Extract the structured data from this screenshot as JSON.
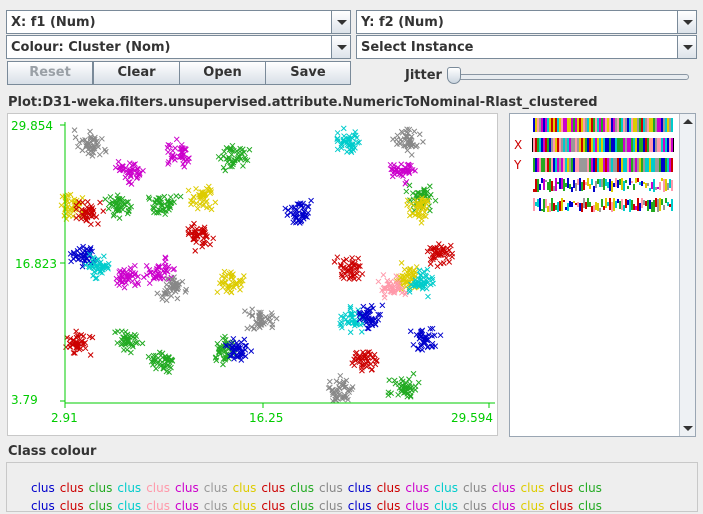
{
  "x_axis_select": {
    "value": "X: f1 (Num)"
  },
  "y_axis_select": {
    "value": "Y: f2 (Num)"
  },
  "colour_select": {
    "value": "Colour: Cluster (Nom)"
  },
  "instance_select": {
    "value": "Select Instance"
  },
  "buttons": {
    "reset": "Reset",
    "clear": "Clear",
    "open": "Open",
    "save": "Save"
  },
  "jitter": {
    "label": "Jitter",
    "value": 0
  },
  "plot": {
    "title": "Plot:D31-weka.filters.unsupervised.attribute.NumericToNominal-Rlast_clustered"
  },
  "side_panel": {
    "x_label": "X",
    "y_label": "Y"
  },
  "class_colour": {
    "label": "Class colour",
    "rows": [
      [
        "clus",
        "clus",
        "clus",
        "clus",
        "clus",
        "clus",
        "clus",
        "clus",
        "clus",
        "clus",
        "clus",
        "clus",
        "clus",
        "clus",
        "clus",
        "clus",
        "clus",
        "clus",
        "clus",
        "clus"
      ],
      [
        "clus",
        "clus",
        "clus",
        "clus",
        "clus",
        "clus",
        "clus",
        "clus",
        "clus",
        "clus",
        "clus",
        "clus",
        "clus",
        "clus",
        "clus",
        "clus",
        "clus",
        "clus",
        "clus",
        "clus"
      ]
    ],
    "colors": [
      [
        "#0000cc",
        "#cc0000",
        "#22aa22",
        "#00cccc",
        "#ff99aa",
        "#cc00cc",
        "#999999",
        "#ddcc00",
        "#cc0000",
        "#22aa22",
        "#888888",
        "#0000cc",
        "#cc0000",
        "#cc00cc",
        "#00cccc",
        "#888888",
        "#cc00cc",
        "#ddcc00",
        "#cc0000",
        "#22aa22"
      ],
      [
        "#0000cc",
        "#cc0000",
        "#22aa22",
        "#00cccc",
        "#ff99aa",
        "#cc00cc",
        "#999999",
        "#ddcc00",
        "#cc0000",
        "#22aa22",
        "#888888",
        "#0000cc",
        "#cc0000",
        "#cc00cc",
        "#00cccc",
        "#888888",
        "#cc00cc",
        "#ddcc00",
        "#cc0000",
        "#22aa22"
      ]
    ]
  },
  "chart_data": {
    "type": "scatter",
    "x_tick_labels": [
      "2.91",
      "16.25",
      "29.594"
    ],
    "y_tick_labels": [
      "29.854",
      "16.823",
      "3.79"
    ],
    "xlim": [
      2.91,
      29.594
    ],
    "ylim": [
      3.79,
      29.854
    ],
    "axis_color": "#00cc00",
    "clusters": [
      {
        "color": "#888888",
        "x": 4.5,
        "y": 28.0
      },
      {
        "color": "#cc00cc",
        "x": 10.0,
        "y": 27.2
      },
      {
        "color": "#cc00cc",
        "x": 7.0,
        "y": 25.5
      },
      {
        "color": "#22aa22",
        "x": 13.6,
        "y": 26.8
      },
      {
        "color": "#00cccc",
        "x": 20.7,
        "y": 28.3
      },
      {
        "color": "#888888",
        "x": 24.5,
        "y": 28.4
      },
      {
        "color": "#cc00cc",
        "x": 24.0,
        "y": 25.6
      },
      {
        "color": "#ddcc00",
        "x": 3.3,
        "y": 22.2
      },
      {
        "color": "#cc0000",
        "x": 4.4,
        "y": 21.5
      },
      {
        "color": "#22aa22",
        "x": 6.3,
        "y": 22.4
      },
      {
        "color": "#22aa22",
        "x": 9.1,
        "y": 22.4
      },
      {
        "color": "#ddcc00",
        "x": 11.6,
        "y": 23.0
      },
      {
        "color": "#0000cc",
        "x": 17.7,
        "y": 21.5
      },
      {
        "color": "#22aa22",
        "x": 25.2,
        "y": 23.0
      },
      {
        "color": "#ddcc00",
        "x": 25.2,
        "y": 22.0
      },
      {
        "color": "#0000cc",
        "x": 4.1,
        "y": 17.5
      },
      {
        "color": "#00cccc",
        "x": 5.0,
        "y": 16.5
      },
      {
        "color": "#cc0000",
        "x": 11.3,
        "y": 19.4
      },
      {
        "color": "#cc00cc",
        "x": 6.8,
        "y": 15.5
      },
      {
        "color": "#cc00cc",
        "x": 8.9,
        "y": 15.9
      },
      {
        "color": "#888888",
        "x": 9.6,
        "y": 14.5
      },
      {
        "color": "#ddcc00",
        "x": 13.3,
        "y": 15.0
      },
      {
        "color": "#cc0000",
        "x": 20.9,
        "y": 16.3
      },
      {
        "color": "#cc0000",
        "x": 26.5,
        "y": 17.7
      },
      {
        "color": "#ddcc00",
        "x": 24.6,
        "y": 15.5
      },
      {
        "color": "#ff99aa",
        "x": 23.5,
        "y": 14.5
      },
      {
        "color": "#00cccc",
        "x": 25.4,
        "y": 14.9
      },
      {
        "color": "#cc0000",
        "x": 3.7,
        "y": 9.2
      },
      {
        "color": "#22aa22",
        "x": 6.9,
        "y": 9.5
      },
      {
        "color": "#22aa22",
        "x": 9.0,
        "y": 7.6
      },
      {
        "color": "#22aa22",
        "x": 13.0,
        "y": 8.6
      },
      {
        "color": "#0000cc",
        "x": 13.8,
        "y": 8.5
      },
      {
        "color": "#888888",
        "x": 15.3,
        "y": 11.4
      },
      {
        "color": "#00cccc",
        "x": 21.0,
        "y": 11.5
      },
      {
        "color": "#0000cc",
        "x": 22.0,
        "y": 11.8
      },
      {
        "color": "#cc0000",
        "x": 21.7,
        "y": 7.6
      },
      {
        "color": "#0000cc",
        "x": 25.5,
        "y": 9.5
      },
      {
        "color": "#888888",
        "x": 20.2,
        "y": 4.7
      },
      {
        "color": "#22aa22",
        "x": 24.3,
        "y": 5.2
      }
    ]
  }
}
